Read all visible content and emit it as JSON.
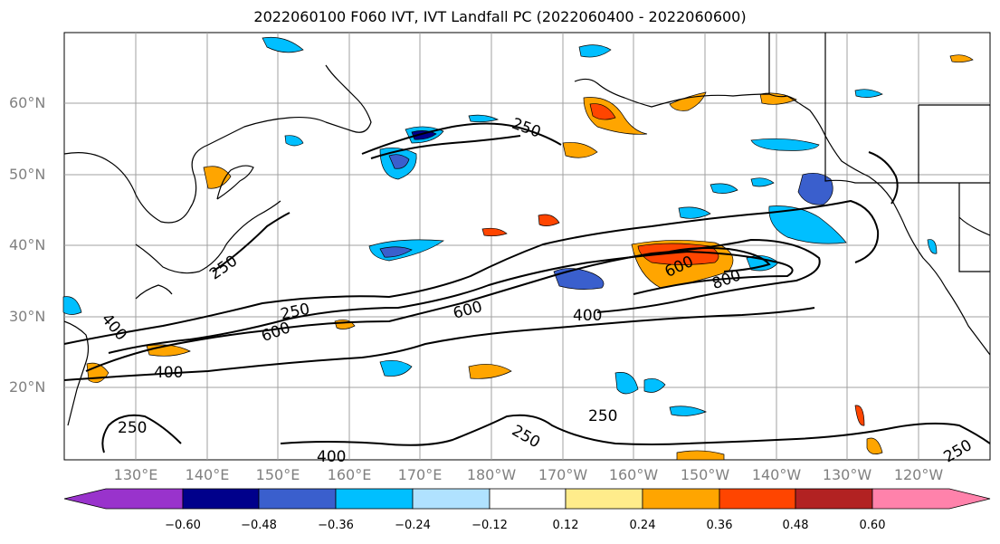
{
  "title": "2022060100 F060 IVT, IVT Landfall PC (2022060400 - 2022060600)",
  "lat_labels": [
    "60°N",
    "50°N",
    "40°N",
    "30°N",
    "20°N"
  ],
  "lon_labels": [
    "130°E",
    "140°E",
    "150°E",
    "160°E",
    "170°E",
    "180°W",
    "170°W",
    "160°W",
    "150°W",
    "140°W",
    "130°W",
    "120°W"
  ],
  "contour_labels": {
    "c250_a": "250",
    "c250_b": "250",
    "c250_c": "250",
    "c250_d": "250",
    "c250_e": "250",
    "c250_f": "250",
    "c250_g": "250",
    "c400_a": "400",
    "c400_b": "400",
    "c400_c": "400",
    "c400_d": "400",
    "c600_a": "600",
    "c600_b": "600",
    "c600_c": "600",
    "c800_a": "800"
  },
  "colorbar": {
    "ticks": [
      "−0.60",
      "−0.48",
      "−0.36",
      "−0.24",
      "−0.12",
      "0.12",
      "0.24",
      "0.36",
      "0.48",
      "0.60"
    ],
    "colors": [
      "#9933cc",
      "#00008b",
      "#3a5fcd",
      "#00bfff",
      "#b0e2ff",
      "#ffffff",
      "#ffec8b",
      "#ffa500",
      "#ff4500",
      "#b22222",
      "#ff82ab"
    ]
  }
}
